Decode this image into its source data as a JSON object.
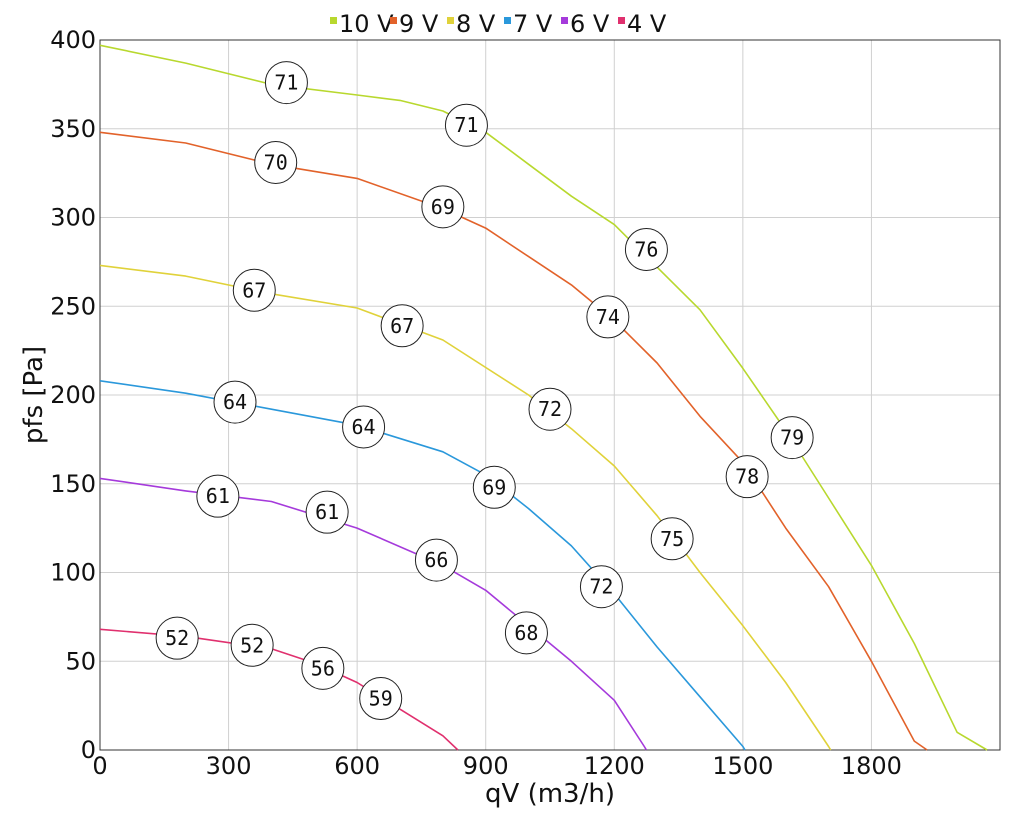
{
  "chart_data": {
    "type": "line",
    "xlabel": "qV (m3/h)",
    "ylabel": "pfs [Pa]",
    "xlim": [
      0,
      2100
    ],
    "ylim": [
      0,
      400
    ],
    "xticks": [
      0,
      300,
      600,
      900,
      1200,
      1500,
      1800
    ],
    "yticks": [
      0,
      50,
      100,
      150,
      200,
      250,
      300,
      350,
      400
    ],
    "grid": true,
    "legend_position": "top-center",
    "series": [
      {
        "name": "10 V",
        "color": "#b8d82e",
        "points": [
          [
            0,
            397
          ],
          [
            200,
            387
          ],
          [
            400,
            375
          ],
          [
            600,
            369
          ],
          [
            700,
            366
          ],
          [
            800,
            360
          ],
          [
            900,
            348
          ],
          [
            1000,
            330
          ],
          [
            1100,
            312
          ],
          [
            1200,
            296
          ],
          [
            1300,
            272
          ],
          [
            1400,
            248
          ],
          [
            1500,
            215
          ],
          [
            1600,
            180
          ],
          [
            1700,
            142
          ],
          [
            1800,
            104
          ],
          [
            1900,
            60
          ],
          [
            2000,
            10
          ],
          [
            2070,
            0
          ]
        ],
        "labels": [
          {
            "x": 435,
            "y": 376,
            "text": "71"
          },
          {
            "x": 855,
            "y": 352,
            "text": "71"
          },
          {
            "x": 1275,
            "y": 282,
            "text": "76"
          },
          {
            "x": 1615,
            "y": 176,
            "text": "79"
          }
        ]
      },
      {
        "name": "9 V",
        "color": "#e2622a",
        "points": [
          [
            0,
            348
          ],
          [
            200,
            342
          ],
          [
            400,
            330
          ],
          [
            600,
            322
          ],
          [
            800,
            305
          ],
          [
            900,
            294
          ],
          [
            1000,
            278
          ],
          [
            1100,
            262
          ],
          [
            1200,
            242
          ],
          [
            1300,
            218
          ],
          [
            1400,
            188
          ],
          [
            1500,
            162
          ],
          [
            1600,
            125
          ],
          [
            1700,
            92
          ],
          [
            1800,
            50
          ],
          [
            1900,
            5
          ],
          [
            1930,
            0
          ]
        ],
        "labels": [
          {
            "x": 410,
            "y": 331,
            "text": "70"
          },
          {
            "x": 800,
            "y": 306,
            "text": "69"
          },
          {
            "x": 1185,
            "y": 244,
            "text": "74"
          },
          {
            "x": 1510,
            "y": 154,
            "text": "78"
          }
        ]
      },
      {
        "name": "8 V",
        "color": "#e0d23a",
        "points": [
          [
            0,
            273
          ],
          [
            200,
            267
          ],
          [
            400,
            257
          ],
          [
            600,
            249
          ],
          [
            800,
            231
          ],
          [
            1000,
            200
          ],
          [
            1100,
            181
          ],
          [
            1200,
            160
          ],
          [
            1300,
            132
          ],
          [
            1400,
            100
          ],
          [
            1500,
            70
          ],
          [
            1600,
            38
          ],
          [
            1700,
            2
          ],
          [
            1705,
            0
          ]
        ],
        "labels": [
          {
            "x": 360,
            "y": 259,
            "text": "67"
          },
          {
            "x": 705,
            "y": 239,
            "text": "67"
          },
          {
            "x": 1050,
            "y": 192,
            "text": "72"
          },
          {
            "x": 1335,
            "y": 119,
            "text": "75"
          }
        ]
      },
      {
        "name": "7 V",
        "color": "#2a98db",
        "points": [
          [
            0,
            208
          ],
          [
            200,
            201
          ],
          [
            400,
            192
          ],
          [
            600,
            183
          ],
          [
            800,
            168
          ],
          [
            900,
            155
          ],
          [
            1000,
            136
          ],
          [
            1100,
            115
          ],
          [
            1200,
            88
          ],
          [
            1300,
            58
          ],
          [
            1400,
            30
          ],
          [
            1500,
            2
          ],
          [
            1505,
            0
          ]
        ],
        "labels": [
          {
            "x": 315,
            "y": 196,
            "text": "64"
          },
          {
            "x": 615,
            "y": 182,
            "text": "64"
          },
          {
            "x": 920,
            "y": 148,
            "text": "69"
          },
          {
            "x": 1170,
            "y": 92,
            "text": "72"
          }
        ]
      },
      {
        "name": "6 V",
        "color": "#a53adb",
        "points": [
          [
            0,
            153
          ],
          [
            200,
            146
          ],
          [
            400,
            140
          ],
          [
            600,
            125
          ],
          [
            800,
            104
          ],
          [
            900,
            90
          ],
          [
            1000,
            70
          ],
          [
            1100,
            50
          ],
          [
            1200,
            28
          ],
          [
            1270,
            2
          ],
          [
            1275,
            0
          ]
        ],
        "labels": [
          {
            "x": 275,
            "y": 143,
            "text": "61"
          },
          {
            "x": 530,
            "y": 134,
            "text": "61"
          },
          {
            "x": 785,
            "y": 107,
            "text": "66"
          },
          {
            "x": 995,
            "y": 66,
            "text": "68"
          }
        ]
      },
      {
        "name": "4 V",
        "color": "#e0306e",
        "points": [
          [
            0,
            68
          ],
          [
            200,
            64
          ],
          [
            400,
            57
          ],
          [
            500,
            49
          ],
          [
            600,
            38
          ],
          [
            700,
            23
          ],
          [
            800,
            8
          ],
          [
            835,
            0
          ]
        ],
        "labels": [
          {
            "x": 180,
            "y": 63,
            "text": "52"
          },
          {
            "x": 355,
            "y": 59,
            "text": "52"
          },
          {
            "x": 520,
            "y": 46,
            "text": "56"
          },
          {
            "x": 655,
            "y": 29,
            "text": "59"
          }
        ]
      }
    ]
  }
}
